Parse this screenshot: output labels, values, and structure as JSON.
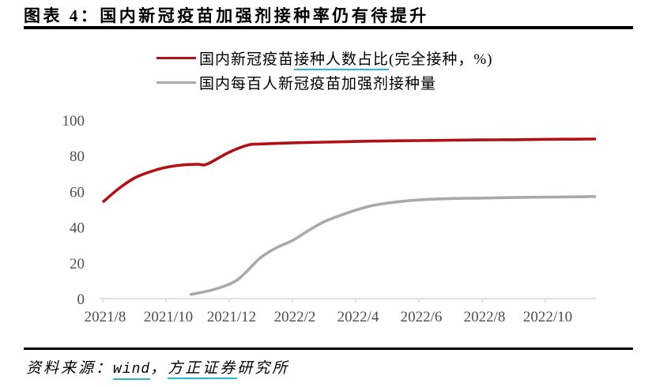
{
  "header": {
    "title": "图表 4：国内新冠疫苗加强剂接种率仍有待提升"
  },
  "legend": {
    "items": [
      {
        "pre": "国内新冠疫苗",
        "underlined": "接种人数占比",
        "post": "(完全接种，%)",
        "color": "#b01116"
      },
      {
        "pre": "国内每百人新冠疫苗加强剂接种量",
        "underlined": "",
        "post": "",
        "color": "#a9a9a9"
      }
    ]
  },
  "footer": {
    "prefix": "资料来源：",
    "source1": "wind",
    "separator": "，",
    "source2": "方正证券",
    "suffix": "研究所"
  },
  "colors": {
    "underline_accent": "#29b7cb",
    "axis_line": "#d6d6d6",
    "tick_text": "#4d4d4d",
    "series_red": "#b01116",
    "series_gray": "#a9a9a9",
    "rule_black": "#000000"
  },
  "chart_data": {
    "type": "line",
    "title": "",
    "xlabel": "",
    "ylabel": "",
    "grid": false,
    "legend_position": "top",
    "ylim": [
      0,
      100
    ],
    "yticks": [
      0,
      20,
      40,
      60,
      80,
      100
    ],
    "x_unit": "months since 2021/8",
    "x_ticks": [
      {
        "label": "2021/8",
        "m": 0
      },
      {
        "label": "2021/10",
        "m": 2
      },
      {
        "label": "2021/12",
        "m": 4
      },
      {
        "label": "2022/2",
        "m": 6
      },
      {
        "label": "2022/4",
        "m": 8
      },
      {
        "label": "2022/6",
        "m": 10
      },
      {
        "label": "2022/8",
        "m": 12
      },
      {
        "label": "2022/10",
        "m": 14
      }
    ],
    "series": [
      {
        "id": "fully-vaccinated-share",
        "name": "国内新冠疫苗接种人数占比(完全接种，%)",
        "color": "#b01116",
        "x": [
          0,
          0.5,
          1,
          1.5,
          2,
          2.5,
          3,
          3.3,
          4,
          4.6,
          5,
          6,
          7,
          8,
          9,
          10,
          11,
          12,
          13,
          14,
          15,
          15.6
        ],
        "values": [
          54,
          61.5,
          67.5,
          71,
          73.5,
          74.8,
          75.2,
          75.3,
          82,
          86,
          86.6,
          87.2,
          87.6,
          88,
          88.3,
          88.5,
          88.7,
          88.9,
          89,
          89.2,
          89.3,
          89.4
        ]
      },
      {
        "id": "booster-doses-per-100",
        "name": "国内每百人新冠疫苗加强剂接种量",
        "color": "#a9a9a9",
        "x": [
          2.75,
          3,
          3.5,
          4,
          4.3,
          4.6,
          5,
          5.5,
          6,
          6.5,
          7,
          7.5,
          8,
          8.5,
          9,
          9.5,
          10,
          11,
          12,
          13,
          14,
          15,
          15.6
        ],
        "values": [
          2.2,
          3,
          5,
          8,
          11,
          16,
          23,
          28.5,
          32.5,
          38,
          43,
          46.5,
          49.5,
          52,
          53.5,
          54.5,
          55.3,
          56,
          56.3,
          56.6,
          56.8,
          57,
          57.2
        ]
      }
    ]
  }
}
